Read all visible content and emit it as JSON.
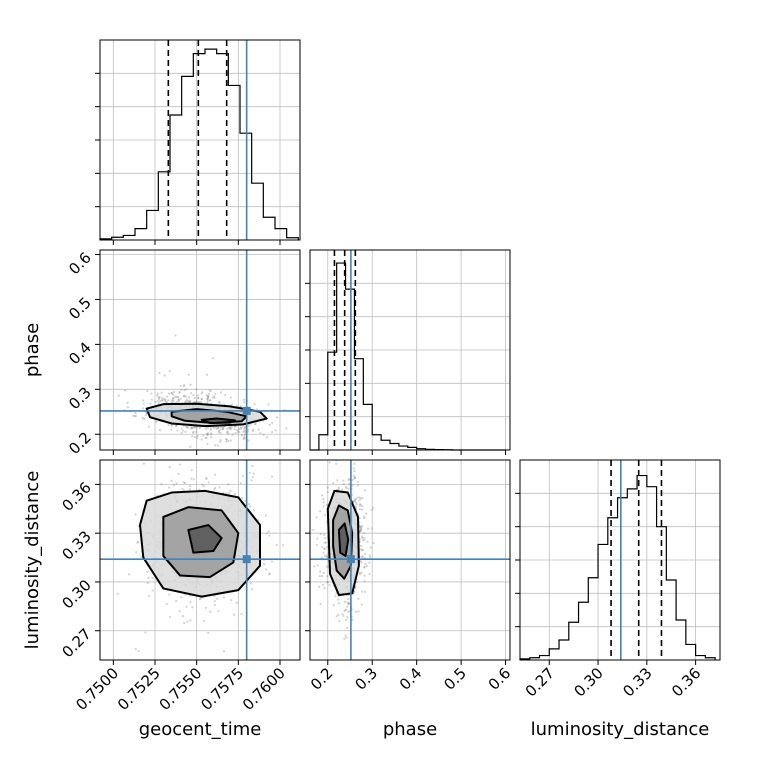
{
  "chart_data": {
    "type": "corner",
    "parameters": [
      "geocent_time",
      "phase",
      "luminosity_distance"
    ],
    "injection": {
      "geocent_time": 0.758,
      "phase": 0.252,
      "luminosity_distance": 0.314
    },
    "colors": {
      "injection": "#4682b4",
      "hist": "#000000",
      "grid": "#bfbfbf",
      "scatter": "#808080"
    },
    "grid": true,
    "panels": {
      "geocent_time_hist": {
        "xlim": [
          0.7492,
          0.7612
        ],
        "ymax": 0.88,
        "quantiles": [
          0.7533,
          0.7551,
          0.7568
        ],
        "bin_edges": [
          0.7492,
          0.7499,
          0.7506,
          0.7513,
          0.752,
          0.7527,
          0.7534,
          0.7541,
          0.7548,
          0.7555,
          0.7562,
          0.7569,
          0.7576,
          0.7583,
          0.759,
          0.7597,
          0.7604,
          0.7611
        ],
        "counts": [
          0.005,
          0.012,
          0.02,
          0.05,
          0.13,
          0.3,
          0.55,
          0.72,
          0.82,
          0.84,
          0.82,
          0.68,
          0.47,
          0.25,
          0.1,
          0.05,
          0.01
        ]
      },
      "phase_hist": {
        "xlim": [
          0.16,
          0.61
        ],
        "ymax": 0.92,
        "quantiles": [
          0.215,
          0.238,
          0.262
        ],
        "bin_edges": [
          0.16,
          0.18,
          0.2,
          0.22,
          0.24,
          0.26,
          0.28,
          0.3,
          0.32,
          0.34,
          0.36,
          0.38,
          0.4,
          0.42,
          0.44,
          0.46,
          0.48,
          0.5,
          0.52,
          0.54,
          0.56,
          0.58,
          0.6
        ],
        "counts": [
          0,
          0.07,
          0.45,
          0.86,
          0.74,
          0.42,
          0.21,
          0.07,
          0.045,
          0.03,
          0.018,
          0.012,
          0.006,
          0.003,
          0.002,
          0.001,
          0,
          0,
          0,
          0,
          0,
          0
        ]
      },
      "luminosity_distance_hist": {
        "xlim": [
          0.252,
          0.375
        ],
        "ymax": 0.9,
        "quantiles": [
          0.308,
          0.325,
          0.339
        ],
        "bin_edges": [
          0.252,
          0.258,
          0.264,
          0.27,
          0.276,
          0.282,
          0.288,
          0.294,
          0.3,
          0.306,
          0.312,
          0.318,
          0.324,
          0.33,
          0.336,
          0.342,
          0.348,
          0.354,
          0.36,
          0.366,
          0.372
        ],
        "counts": [
          0.005,
          0.01,
          0.02,
          0.05,
          0.09,
          0.17,
          0.26,
          0.37,
          0.52,
          0.64,
          0.73,
          0.77,
          0.83,
          0.78,
          0.6,
          0.36,
          0.18,
          0.07,
          0.02,
          0.01
        ]
      },
      "phase_vs_geocent_time": {
        "xlim": [
          0.7492,
          0.7612
        ],
        "ylim": [
          0.165,
          0.61
        ],
        "center": [
          0.7553,
          0.245
        ],
        "spread": [
          0.0016,
          0.022
        ],
        "corr": -0.35,
        "contours": [
          [
            [
              0.752,
              0.257
            ],
            [
              0.753,
              0.267
            ],
            [
              0.755,
              0.268
            ],
            [
              0.757,
              0.262
            ],
            [
              0.7588,
              0.25
            ],
            [
              0.7592,
              0.235
            ],
            [
              0.7578,
              0.222
            ],
            [
              0.7555,
              0.218
            ],
            [
              0.7535,
              0.224
            ],
            [
              0.7522,
              0.238
            ]
          ],
          [
            [
              0.7535,
              0.25
            ],
            [
              0.755,
              0.256
            ],
            [
              0.7568,
              0.25
            ],
            [
              0.758,
              0.24
            ],
            [
              0.7577,
              0.229
            ],
            [
              0.756,
              0.225
            ],
            [
              0.7543,
              0.23
            ],
            [
              0.7535,
              0.24
            ]
          ],
          [
            [
              0.7553,
              0.232
            ],
            [
              0.7562,
              0.235
            ],
            [
              0.7573,
              0.231
            ],
            [
              0.757,
              0.226
            ],
            [
              0.7558,
              0.225
            ]
          ]
        ]
      },
      "luminosity_distance_vs_geocent_time": {
        "xlim": [
          0.7492,
          0.7612
        ],
        "ylim": [
          0.252,
          0.375
        ],
        "center": [
          0.7553,
          0.324
        ],
        "spread": [
          0.0017,
          0.017
        ],
        "corr": 0.0,
        "contours": [
          [
            [
              0.752,
              0.35
            ],
            [
              0.7535,
              0.355
            ],
            [
              0.7555,
              0.356
            ],
            [
              0.7575,
              0.352
            ],
            [
              0.7588,
              0.335
            ],
            [
              0.7588,
              0.31
            ],
            [
              0.7575,
              0.295
            ],
            [
              0.7553,
              0.291
            ],
            [
              0.753,
              0.296
            ],
            [
              0.7518,
              0.315
            ],
            [
              0.7516,
              0.335
            ]
          ],
          [
            [
              0.753,
              0.34
            ],
            [
              0.7545,
              0.346
            ],
            [
              0.7565,
              0.344
            ],
            [
              0.7575,
              0.33
            ],
            [
              0.7572,
              0.312
            ],
            [
              0.7558,
              0.303
            ],
            [
              0.754,
              0.304
            ],
            [
              0.753,
              0.316
            ]
          ],
          [
            [
              0.7545,
              0.332
            ],
            [
              0.7557,
              0.335
            ],
            [
              0.7565,
              0.327
            ],
            [
              0.756,
              0.319
            ],
            [
              0.7548,
              0.318
            ]
          ]
        ]
      },
      "luminosity_distance_vs_phase": {
        "xlim": [
          0.16,
          0.61
        ],
        "ylim": [
          0.252,
          0.375
        ],
        "center": [
          0.238,
          0.324
        ],
        "spread": [
          0.022,
          0.017
        ],
        "corr": 0.0,
        "contours": [
          [
            [
              0.2,
              0.345
            ],
            [
              0.215,
              0.356
            ],
            [
              0.245,
              0.355
            ],
            [
              0.268,
              0.34
            ],
            [
              0.27,
              0.31
            ],
            [
              0.255,
              0.293
            ],
            [
              0.225,
              0.292
            ],
            [
              0.205,
              0.305
            ]
          ],
          [
            [
              0.212,
              0.338
            ],
            [
              0.225,
              0.347
            ],
            [
              0.245,
              0.344
            ],
            [
              0.255,
              0.33
            ],
            [
              0.252,
              0.31
            ],
            [
              0.237,
              0.302
            ],
            [
              0.22,
              0.307
            ],
            [
              0.212,
              0.322
            ]
          ],
          [
            [
              0.225,
              0.332
            ],
            [
              0.238,
              0.336
            ],
            [
              0.246,
              0.326
            ],
            [
              0.24,
              0.316
            ],
            [
              0.228,
              0.318
            ]
          ]
        ]
      }
    },
    "ticks": {
      "geocent_time": [
        "0.7500",
        "0.7525",
        "0.7550",
        "0.7575",
        "0.7600"
      ],
      "phase": [
        "0.2",
        "0.3",
        "0.4",
        "0.5",
        "0.6"
      ],
      "luminosity_distance": [
        "0.27",
        "0.30",
        "0.33",
        "0.36"
      ]
    },
    "tick_values": {
      "geocent_time": [
        0.75,
        0.7525,
        0.755,
        0.7575,
        0.76
      ],
      "phase": [
        0.2,
        0.3,
        0.4,
        0.5,
        0.6
      ],
      "luminosity_distance": [
        0.27,
        0.3,
        0.33,
        0.36
      ]
    },
    "axis_labels": {
      "x_left": "geocent_time",
      "x_mid": "phase",
      "x_right": "luminosity_distance",
      "y_mid": "phase",
      "y_bottom": "luminosity_distance"
    }
  }
}
